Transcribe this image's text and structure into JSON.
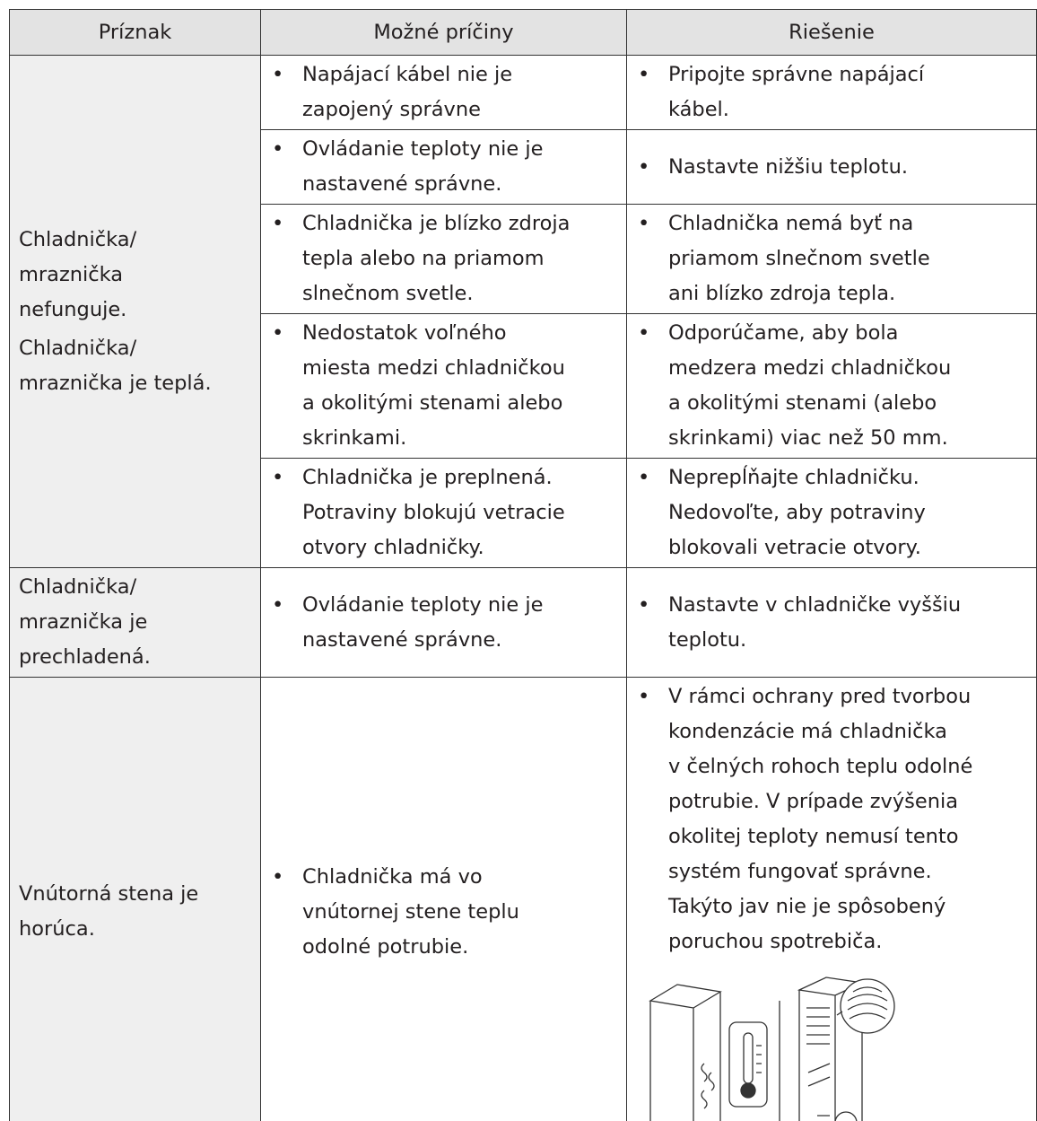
{
  "table": {
    "header": [
      "Príznak",
      "Možné príčiny",
      "Riešenie"
    ],
    "groups": [
      {
        "symptom": [
          "Chladnička/",
          "mraznička",
          "nefunguje.",
          "Chladnička/",
          "mraznička je teplá."
        ],
        "rows": [
          {
            "cause": [
              "Napájací kábel nie je",
              "zapojený správne"
            ],
            "solution": [
              "Pripojte správne napájací",
              "kábel."
            ]
          },
          {
            "cause": [
              "Ovládanie teploty nie je",
              "nastavené správne."
            ],
            "solution": [
              "Nastavte nižšiu teplotu."
            ]
          },
          {
            "cause": [
              "Chladnička je blízko zdroja",
              "tepla alebo na priamom",
              "slnečnom svetle."
            ],
            "solution": [
              "Chladnička nemá byť na",
              "priamom slnečnom svetle",
              "ani blízko zdroja tepla."
            ]
          },
          {
            "cause": [
              "Nedostatok voľného",
              "miesta medzi chladničkou",
              "a okolitými stenami alebo",
              "skrinkami."
            ],
            "solution": [
              "Odporúčame, aby bola",
              "medzera medzi chladničkou",
              "a okolitými stenami (alebo",
              "skrinkami) viac než 50 mm."
            ]
          },
          {
            "cause": [
              "Chladnička je preplnená.",
              "Potraviny blokujú vetracie",
              "otvory chladničky."
            ],
            "solution": [
              "Neprepĺňajte chladničku.",
              "Nedovoľte, aby potraviny",
              "blokovali vetracie otvory."
            ]
          }
        ]
      },
      {
        "symptom": [
          "Chladnička/",
          "mraznička je",
          "prechladená."
        ],
        "rows": [
          {
            "cause": [
              "Ovládanie teploty nie je",
              "nastavené správne."
            ],
            "solution": [
              "Nastavte v chladničke vyššiu",
              "teplotu."
            ]
          }
        ]
      },
      {
        "symptom": [
          "Vnútorná stena je",
          "horúca."
        ],
        "rows": [
          {
            "cause": [
              "Chladnička má vo",
              "vnútornej stene teplu",
              "odolné potrubie."
            ],
            "solution": [
              "V rámci ochrany pred tvorbou",
              "kondenzácie má chladnička",
              "v čelných rohoch teplu odolné",
              "potrubie. V prípade zvýšenia",
              "okolitej teploty nemusí tento",
              "systém fungovať správne.",
              "Takýto jav nie je spôsobený",
              "poruchou spotrebiča."
            ]
          }
        ]
      }
    ]
  }
}
